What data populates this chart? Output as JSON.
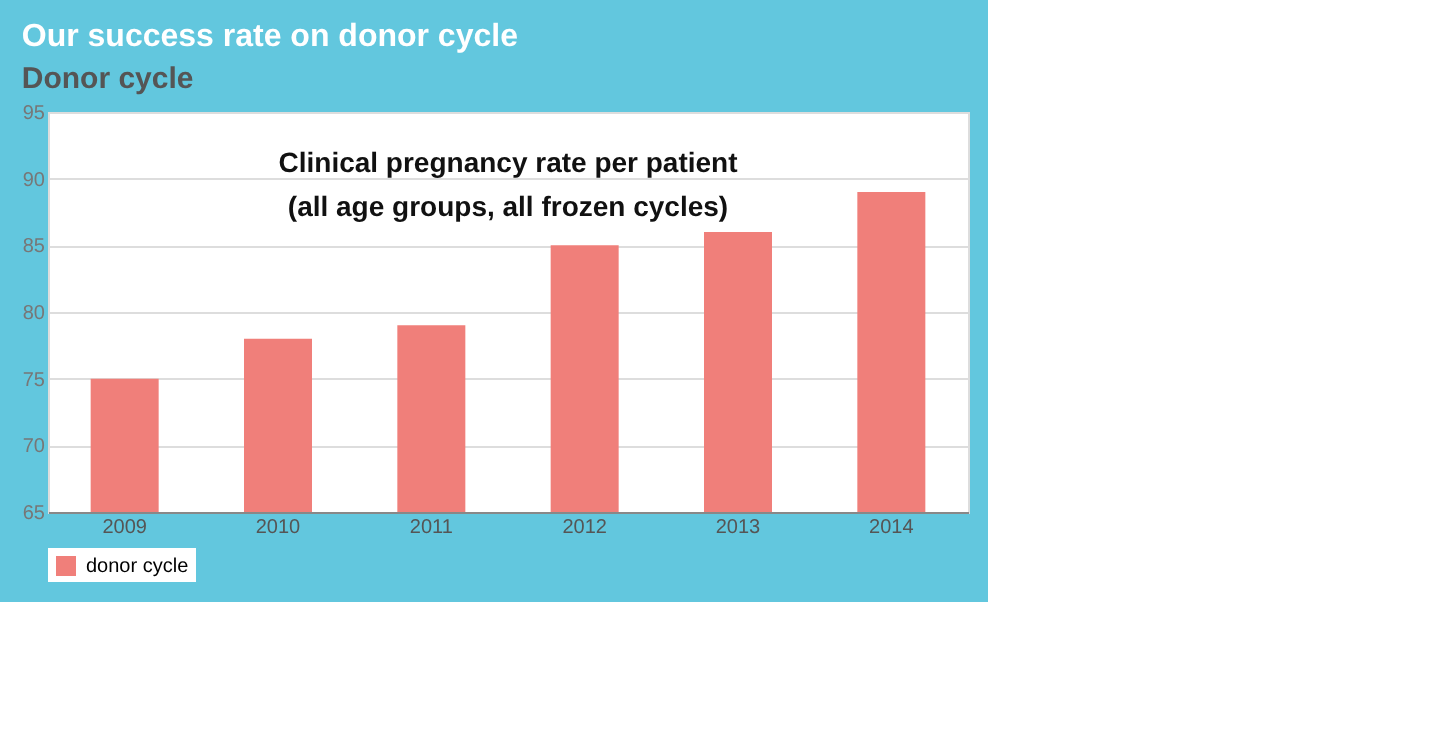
{
  "chart_data": {
    "type": "bar",
    "title": "Our success rate on donor cycle",
    "subtitle": "Donor cycle",
    "annotations": [
      "Clinical pregnancy rate per patient",
      "(all age groups, all frozen cycles)"
    ],
    "categories": [
      "2009",
      "2010",
      "2011",
      "2012",
      "2013",
      "2014"
    ],
    "series": [
      {
        "name": "donor cycle",
        "color": "#f07f7a",
        "values": [
          75,
          78,
          79,
          85,
          86,
          89
        ]
      }
    ],
    "ylim": [
      65,
      95
    ],
    "yticks": [
      65,
      70,
      75,
      80,
      85,
      90,
      95
    ],
    "grid": "y",
    "legend": "bottom"
  }
}
